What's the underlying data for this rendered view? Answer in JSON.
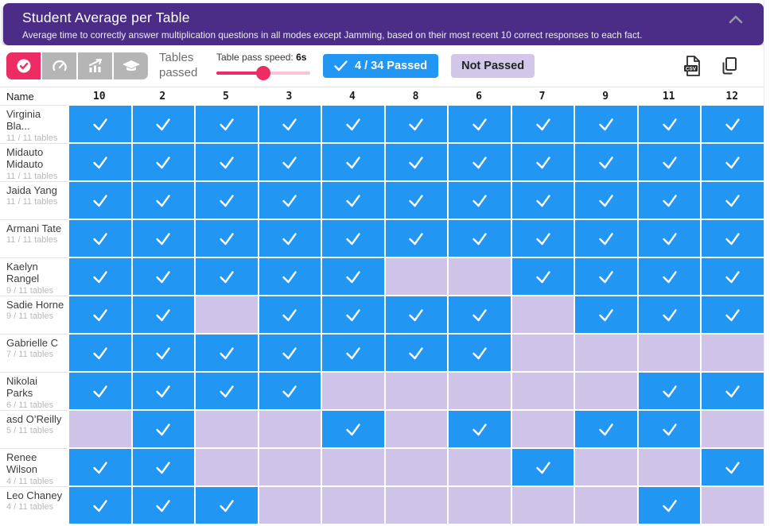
{
  "header": {
    "title": "Student Average per Table",
    "subtitle": "Average time to correctly answer multiplication questions in all modes except Jamming, based on their most recent 10 correct responses to each fact.",
    "collapse_icon": "chevron-up-icon"
  },
  "toolbar": {
    "modes": [
      {
        "icon": "check-circle-icon",
        "selected": true
      },
      {
        "icon": "speedometer-icon",
        "selected": false
      },
      {
        "icon": "trending-chart-icon",
        "selected": false
      },
      {
        "icon": "graduation-cap-icon",
        "selected": false
      }
    ],
    "mode_label": "Tables passed",
    "slider_label": "Table pass speed:",
    "slider_value": "6s",
    "slider_percent": 50,
    "passed_badge": "4 / 34 Passed",
    "not_passed_badge": "Not Passed",
    "export_icons": [
      "csv-export-icon",
      "copy-icon"
    ]
  },
  "colors": {
    "header_purple": "#4b2c87",
    "accent_pink": "#ec2c63",
    "passed_blue": "#2196f3",
    "not_passed_purple": "#cfc4e7",
    "inactive_gray": "#b5b5b5"
  },
  "table": {
    "name_header": "Name",
    "columns": [
      "10",
      "2",
      "5",
      "3",
      "4",
      "8",
      "6",
      "7",
      "9",
      "11",
      "12"
    ],
    "rows": [
      {
        "name": "Virginia Bla...",
        "subtitle": "11 / 11 tables",
        "passed": [
          1,
          1,
          1,
          1,
          1,
          1,
          1,
          1,
          1,
          1,
          1
        ]
      },
      {
        "name": "Midauto Midauto",
        "subtitle": "11 / 11 tables",
        "passed": [
          1,
          1,
          1,
          1,
          1,
          1,
          1,
          1,
          1,
          1,
          1
        ]
      },
      {
        "name": "Jaida Yang",
        "subtitle": "11 / 11 tables",
        "passed": [
          1,
          1,
          1,
          1,
          1,
          1,
          1,
          1,
          1,
          1,
          1
        ]
      },
      {
        "name": "Armani Tate",
        "subtitle": "11 / 11 tables",
        "passed": [
          1,
          1,
          1,
          1,
          1,
          1,
          1,
          1,
          1,
          1,
          1
        ]
      },
      {
        "name": "Kaelyn Rangel",
        "subtitle": "9 / 11 tables",
        "passed": [
          1,
          1,
          1,
          1,
          1,
          0,
          0,
          1,
          1,
          1,
          1
        ]
      },
      {
        "name": "Sadie Horne",
        "subtitle": "9 / 11 tables",
        "passed": [
          1,
          1,
          0,
          1,
          1,
          1,
          1,
          0,
          1,
          1,
          1
        ]
      },
      {
        "name": "Gabrielle C",
        "subtitle": "7 / 11 tables",
        "passed": [
          1,
          1,
          1,
          1,
          1,
          1,
          1,
          0,
          0,
          0,
          0
        ]
      },
      {
        "name": "Nikolai Parks",
        "subtitle": "6 / 11 tables",
        "passed": [
          1,
          1,
          1,
          1,
          0,
          0,
          0,
          0,
          0,
          1,
          1
        ]
      },
      {
        "name": "asd O’Reilly",
        "subtitle": "5 / 11 tables",
        "passed": [
          0,
          1,
          0,
          0,
          1,
          0,
          1,
          0,
          1,
          1,
          0
        ]
      },
      {
        "name": "Renee Wilson",
        "subtitle": "4 / 11 tables",
        "passed": [
          1,
          1,
          0,
          0,
          0,
          0,
          0,
          1,
          0,
          0,
          1
        ]
      },
      {
        "name": "Leo Chaney",
        "subtitle": "4 / 11 tables",
        "passed": [
          1,
          1,
          1,
          0,
          0,
          0,
          0,
          0,
          0,
          1,
          0
        ]
      }
    ]
  }
}
